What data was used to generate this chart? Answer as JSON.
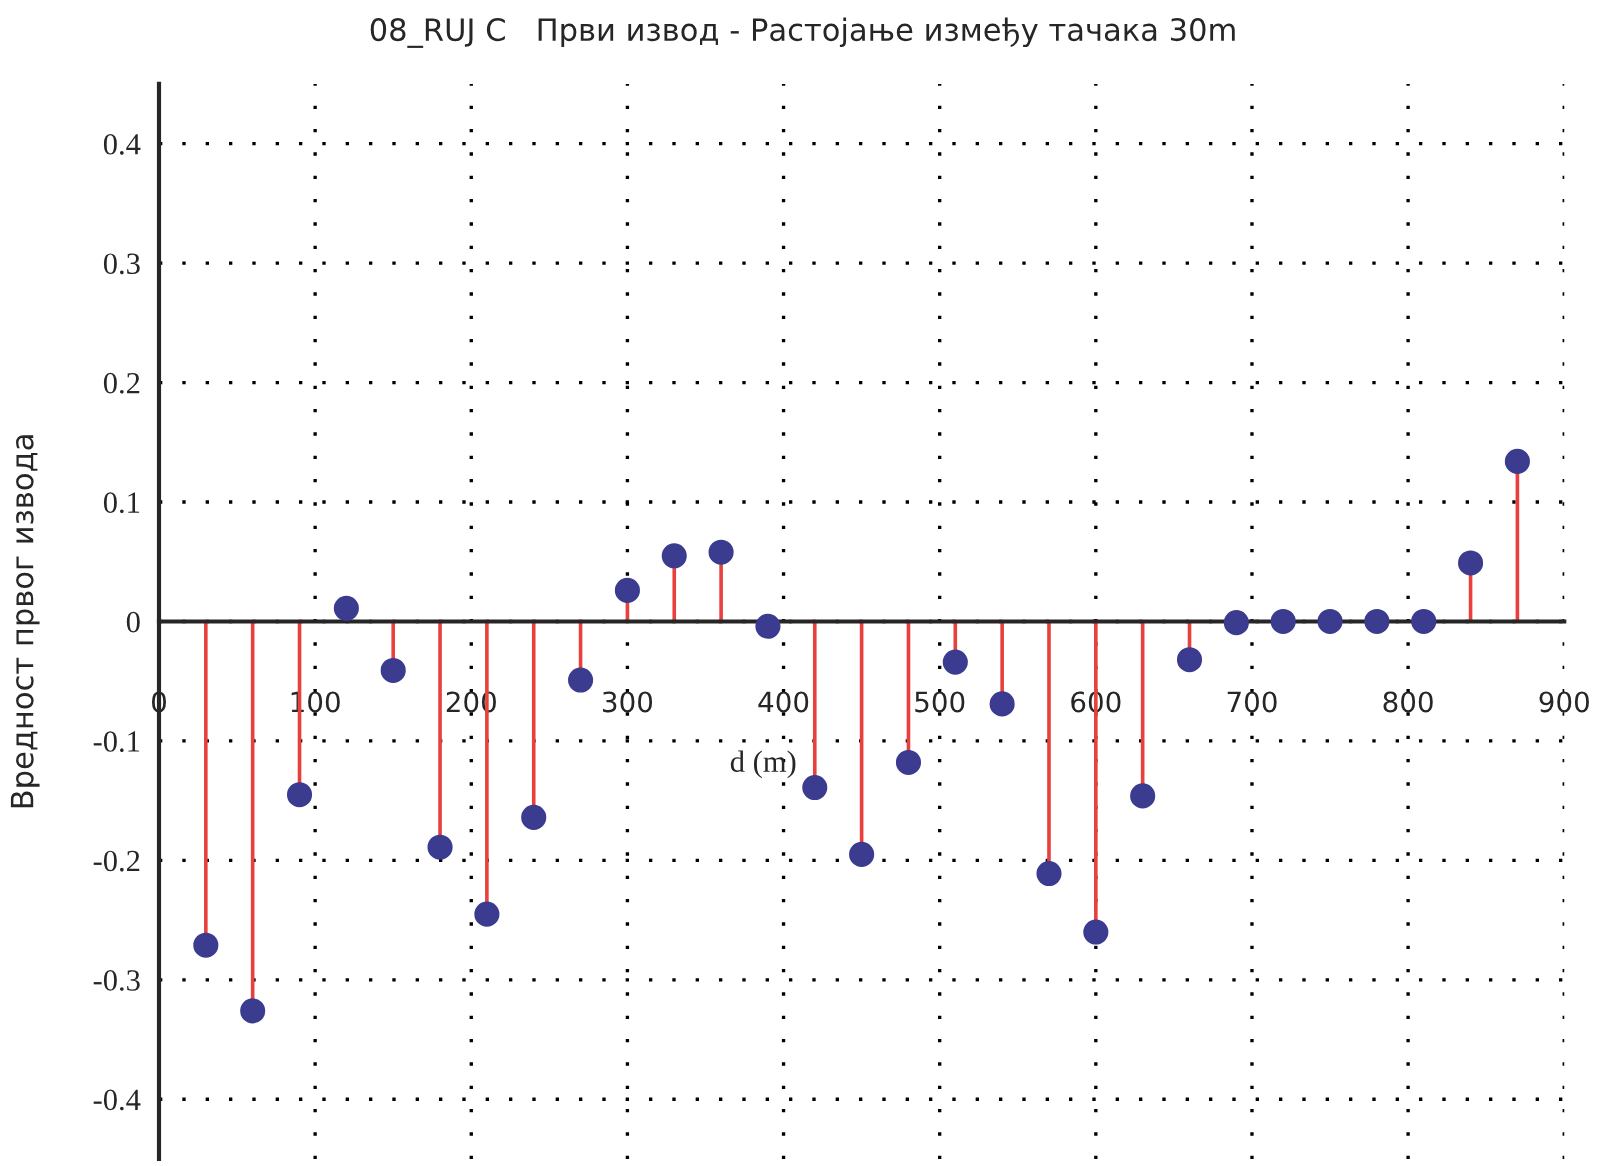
{
  "chart_data": {
    "type": "lollipop",
    "title": "08_RUJ C   Први извод - Растојање између тачака 30m",
    "xlabel": "d (m)",
    "ylabel": "Вредност првог извода",
    "x": [
      30,
      60,
      90,
      120,
      150,
      180,
      210,
      240,
      270,
      300,
      330,
      360,
      390,
      420,
      450,
      480,
      510,
      540,
      570,
      600,
      630,
      660,
      690,
      720,
      750,
      780,
      810,
      840,
      870
    ],
    "series": [
      {
        "color": "#3b3b8f",
        "values": [
          -0.271,
          -0.326,
          -0.145,
          0.011,
          -0.041,
          -0.189,
          -0.245,
          -0.164,
          -0.049,
          0.026,
          0.055,
          0.058,
          -0.004,
          -0.139,
          -0.195,
          -0.118,
          -0.034,
          -0.069,
          -0.211,
          -0.26,
          -0.146,
          -0.032,
          -0.001,
          0,
          0,
          0,
          0,
          0.049,
          0.134
        ]
      }
    ],
    "xlim": [
      0,
      900
    ],
    "xticks": [
      0,
      100,
      200,
      300,
      400,
      500,
      600,
      700,
      800,
      900
    ],
    "ylim": [
      -0.45,
      0.45
    ],
    "yticks": [
      -0.4,
      -0.3,
      -0.2,
      -0.1,
      0,
      0.1,
      0.2,
      0.3,
      0.4
    ],
    "grid": true,
    "marker": "circle",
    "legend": false
  }
}
